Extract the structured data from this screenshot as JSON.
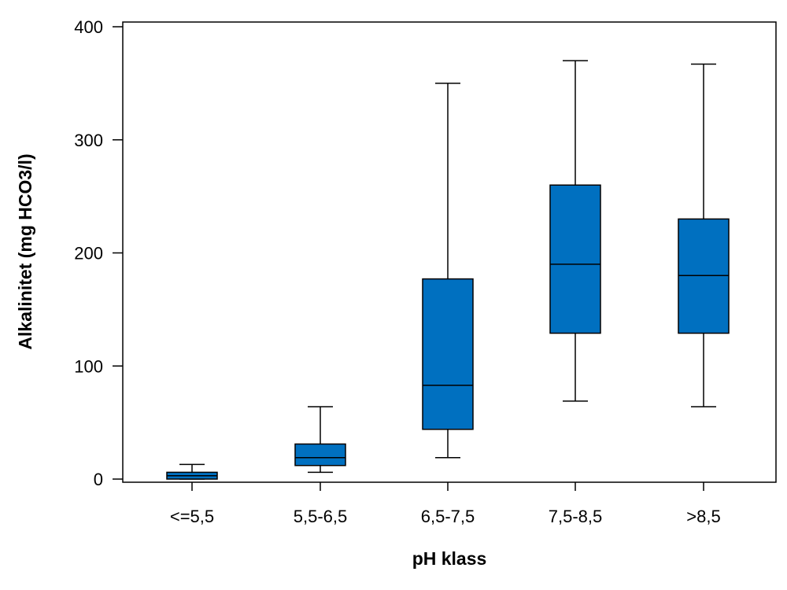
{
  "chart_data": {
    "type": "boxplot",
    "title": "",
    "xlabel": "pH klass",
    "ylabel": "Alkalinitet (mg HCO3/l)",
    "ylim": [
      -3,
      403
    ],
    "yticks": [
      0,
      100,
      200,
      300,
      400
    ],
    "grid": false,
    "categories": [
      "<=5,5",
      "5,5-6,5",
      "6,5-7,5",
      "7,5-8,5",
      ">8,5"
    ],
    "boxes": [
      {
        "category": "<=5,5",
        "whisker_low": 0,
        "q1": 0,
        "median": 3,
        "q3": 6,
        "whisker_high": 13
      },
      {
        "category": "5,5-6,5",
        "whisker_low": 6,
        "q1": 12,
        "median": 19,
        "q3": 31,
        "whisker_high": 64
      },
      {
        "category": "6,5-7,5",
        "whisker_low": 19,
        "q1": 44,
        "median": 83,
        "q3": 177,
        "whisker_high": 350
      },
      {
        "category": "7,5-8,5",
        "whisker_low": 69,
        "q1": 129,
        "median": 190,
        "q3": 260,
        "whisker_high": 370
      },
      {
        "category": ">8,5",
        "whisker_low": 64,
        "q1": 129,
        "median": 180,
        "q3": 230,
        "whisker_high": 367
      }
    ],
    "colors": {
      "box_fill": "#0070C0",
      "line": "#000000",
      "background": "#ffffff"
    }
  }
}
